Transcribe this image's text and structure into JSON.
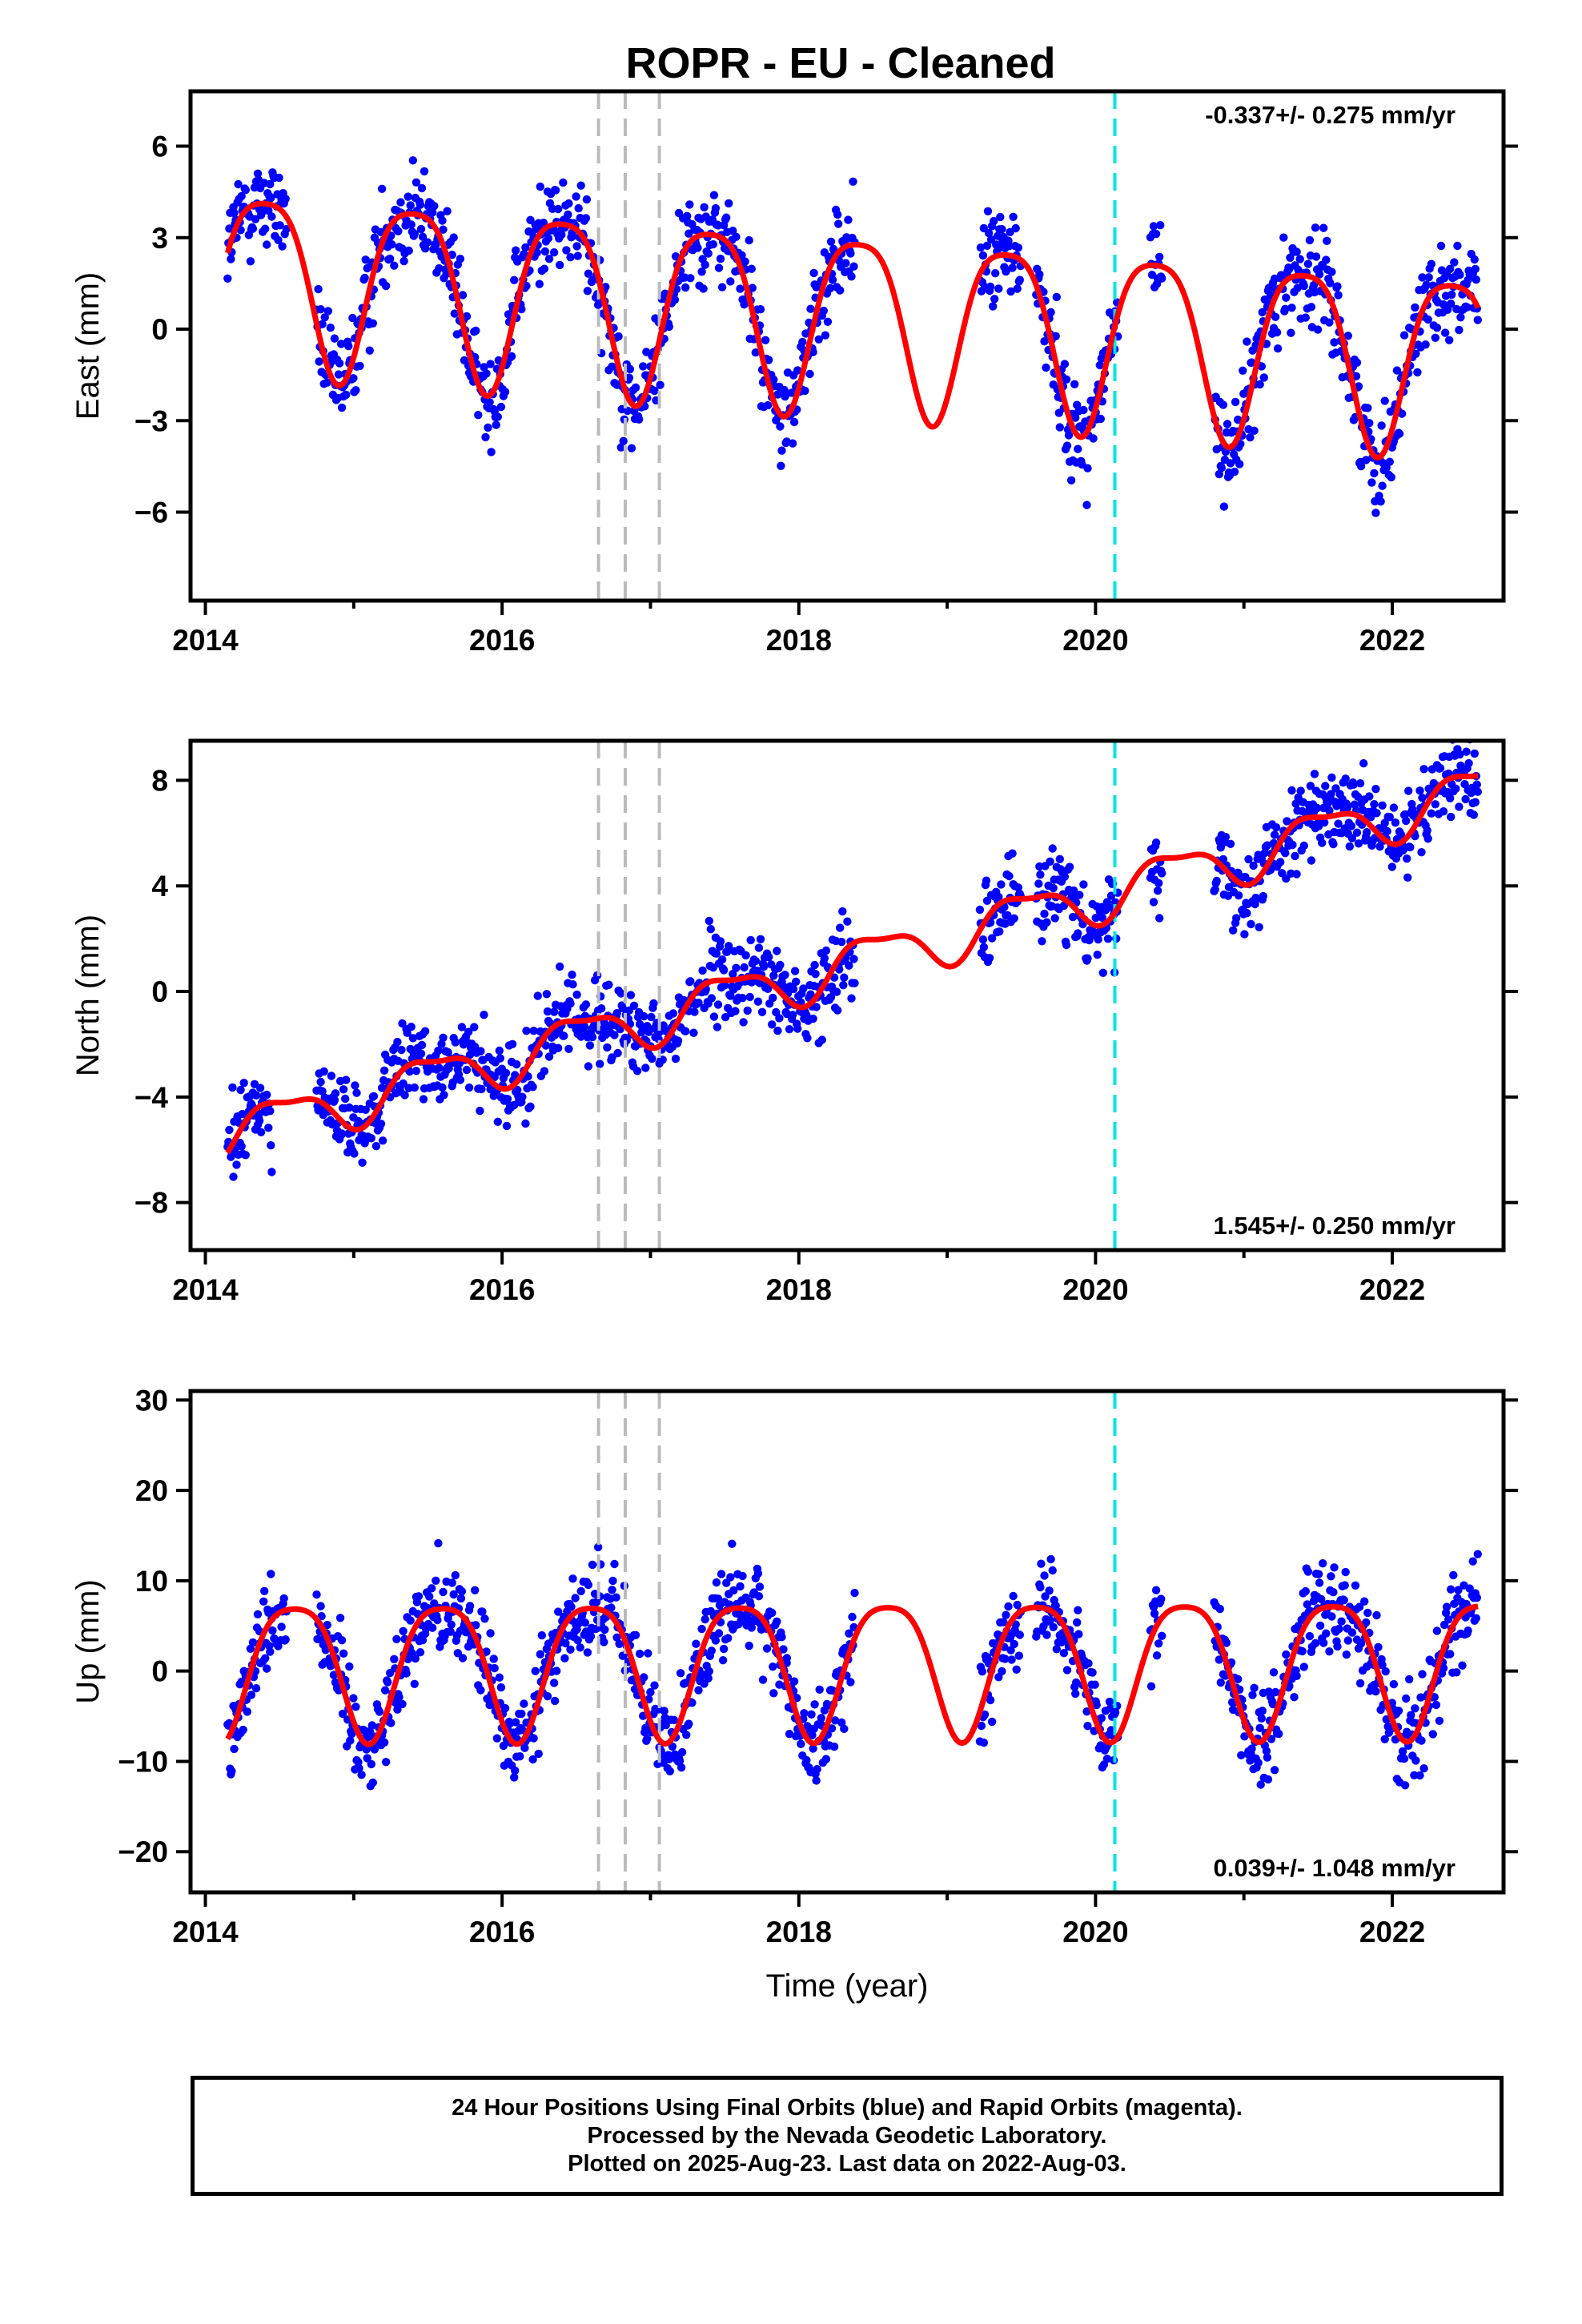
{
  "title": "ROPR  - EU - Cleaned",
  "footer": {
    "line1": "24 Hour Positions Using Final Orbits (blue) and Rapid Orbits (magenta).",
    "line2": "Processed by the Nevada Geodetic Laboratory.",
    "line3": "Plotted on 2025-Aug-23. Last data on 2022-Aug-03."
  },
  "colors": {
    "points": "#0000ff",
    "model": "#ff0000",
    "equipment_change": "#bbbbbb",
    "event": "#00e5e5",
    "frame": "#000000"
  },
  "chart_data": [
    {
      "type": "scatter",
      "name": "east",
      "ylabel": "East (mm)",
      "xlabel": "",
      "rate_text": "-0.337+/- 0.275 mm/yr",
      "rate_position": "top-right",
      "xlim": [
        2013.9,
        2022.75
      ],
      "ylim": [
        -8.9,
        7.8
      ],
      "xticks": [
        2014,
        2016,
        2018,
        2020,
        2022
      ],
      "yticks": [
        6,
        3,
        0,
        -3,
        -6
      ],
      "vlines_gray": [
        2016.65,
        2016.83,
        2017.06
      ],
      "vlines_cyan": [
        2020.13
      ],
      "segments": [
        [
          2014.15,
          2014.55
        ],
        [
          2014.75,
          2017.92
        ],
        [
          2017.92,
          2018.38
        ],
        [
          2019.22,
          2019.5
        ],
        [
          2019.6,
          2020.15
        ],
        [
          2020.37,
          2020.45
        ],
        [
          2020.8,
          2022.58
        ]
      ],
      "model": {
        "offset": 0.5,
        "trend": -0.337,
        "t0": 2018.3,
        "annual_amp": 2.9,
        "annual_phase": 2018.4,
        "semi_amp": 0.6,
        "semi_phase": 2018.15,
        "steps": [],
        "gen_noise": 1.1
      },
      "series": [
        {
          "name": "",
          "kind": "points",
          "color": "#0000ff"
        },
        {
          "name": "",
          "kind": "line",
          "color": "#ff0000"
        }
      ]
    },
    {
      "type": "scatter",
      "name": "north",
      "ylabel": "North (mm)",
      "xlabel": "",
      "rate_text": "1.545+/- 0.250 mm/yr",
      "rate_position": "bottom-right",
      "xlim": [
        2013.9,
        2022.75
      ],
      "ylim": [
        -9.8,
        9.5
      ],
      "xticks": [
        2014,
        2016,
        2018,
        2020,
        2022
      ],
      "yticks": [
        8,
        4,
        0,
        -4,
        -8
      ],
      "vlines_gray": [
        2016.65,
        2016.83,
        2017.06
      ],
      "vlines_cyan": [
        2020.13
      ],
      "segments": [
        [
          2014.15,
          2014.45
        ],
        [
          2014.75,
          2017.92
        ],
        [
          2017.92,
          2018.38
        ],
        [
          2019.22,
          2019.5
        ],
        [
          2019.6,
          2020.15
        ],
        [
          2020.37,
          2020.45
        ],
        [
          2020.8,
          2022.58
        ]
      ],
      "model": {
        "offset": -1.0,
        "trend": 1.545,
        "t0": 2017.0,
        "annual_amp": 0.9,
        "annual_phase": 2016.52,
        "semi_amp": 0.3,
        "semi_phase": 2016.3,
        "steps": [],
        "gen_noise": 1.1
      },
      "series": [
        {
          "name": "",
          "kind": "points",
          "color": "#0000ff"
        },
        {
          "name": "",
          "kind": "line",
          "color": "#ff0000"
        }
      ]
    },
    {
      "type": "scatter",
      "name": "up",
      "ylabel": "Up (mm)",
      "xlabel": "Time (year)",
      "rate_text": "0.039+/- 1.048 mm/yr",
      "rate_position": "bottom-right",
      "xlim": [
        2013.9,
        2022.75
      ],
      "ylim": [
        -24.5,
        31
      ],
      "xticks": [
        2014,
        2016,
        2018,
        2020,
        2022
      ],
      "yticks": [
        30,
        20,
        10,
        0,
        -10,
        -20
      ],
      "vlines_gray": [
        2016.65,
        2016.83,
        2017.06
      ],
      "vlines_cyan": [
        2020.13
      ],
      "segments": [
        [
          2014.15,
          2014.55
        ],
        [
          2014.75,
          2017.92
        ],
        [
          2017.92,
          2018.38
        ],
        [
          2019.22,
          2019.5
        ],
        [
          2019.6,
          2020.15
        ],
        [
          2020.37,
          2020.45
        ],
        [
          2020.8,
          2022.58
        ]
      ],
      "model": {
        "offset": 1.0,
        "trend": 0.039,
        "t0": 2018.3,
        "annual_amp": 7.5,
        "annual_phase": 2018.6,
        "semi_amp": 1.5,
        "semi_phase": 2018.35,
        "steps": [],
        "gen_noise": 3.6
      },
      "series": [
        {
          "name": "",
          "kind": "points",
          "color": "#0000ff"
        },
        {
          "name": "",
          "kind": "line",
          "color": "#ff0000"
        }
      ]
    }
  ]
}
